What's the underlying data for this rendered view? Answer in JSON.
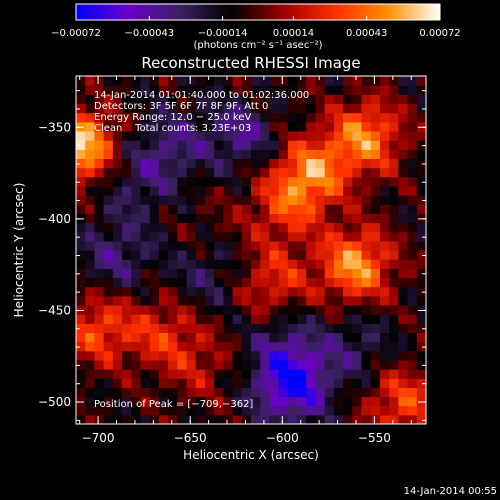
{
  "chart_data": {
    "type": "heatmap",
    "title": "Reconstructed RHESSI Image",
    "xlabel": "Heliocentric X (arcsec)",
    "ylabel": "Heliocentric Y (arcsec)",
    "xlim": [
      -712,
      -522
    ],
    "ylim": [
      -512,
      -322
    ],
    "x_ticks": [
      -700,
      -650,
      -600,
      -550
    ],
    "x_tick_labels": [
      "−700",
      "−650",
      "−600",
      "−550"
    ],
    "y_ticks": [
      -350,
      -400,
      -450,
      -500
    ],
    "y_tick_labels": [
      "−350",
      "−400",
      "−450",
      "−500"
    ],
    "colorbar": {
      "range": [
        -0.00072,
        0.00072
      ],
      "ticks": [
        -0.00072,
        -0.00043,
        -0.00014,
        0.00014,
        0.00043,
        0.00072
      ],
      "tick_labels": [
        "−0.00072",
        "−0.00043",
        "−0.00014",
        "0.00014",
        "0.00043",
        "0.00072"
      ],
      "units_label": "(photons cm⁻² s⁻¹ asec⁻²)",
      "colors": [
        "#0000ff",
        "#6a00c8",
        "#3a2060",
        "#000000",
        "#a00000",
        "#ff3000",
        "#ff9000",
        "#ffffff"
      ]
    },
    "annotations": {
      "time_range": "14-Jan-2014 01:01:40.000 to 01:02:36.000",
      "detectors": "Detectors: 3F 5F 6F 7F 8F 9F, Att 0",
      "energy_range": "Energy Range: 12.0 − 25.0 keV",
      "clean_counts": "Clean    Total counts: 3.23E+03",
      "peak": "Position of Peak = [−709,−362]"
    },
    "bright_regions": [
      {
        "x": -710,
        "y": -360,
        "value": 0.00072
      },
      {
        "x": -555,
        "y": -355,
        "value": 0.00055
      },
      {
        "x": -585,
        "y": -375,
        "value": 0.00055
      },
      {
        "x": -600,
        "y": -395,
        "value": 0.0003
      },
      {
        "x": -560,
        "y": -425,
        "value": 0.0006
      },
      {
        "x": -605,
        "y": -435,
        "value": 0.00035
      },
      {
        "x": -700,
        "y": -460,
        "value": 0.0004
      },
      {
        "x": -665,
        "y": -462,
        "value": 0.0003
      },
      {
        "x": -645,
        "y": -480,
        "value": 0.0002
      },
      {
        "x": -535,
        "y": -500,
        "value": 0.0004
      },
      {
        "x": -615,
        "y": -340,
        "value": 0.00015
      },
      {
        "x": -640,
        "y": -405,
        "value": 8e-05
      }
    ],
    "dark_regions": [
      {
        "x": -690,
        "y": -420,
        "value": -0.00025
      },
      {
        "x": -660,
        "y": -360,
        "value": -0.00025
      },
      {
        "x": -640,
        "y": -430,
        "value": -0.0002
      },
      {
        "x": -595,
        "y": -490,
        "value": -0.0006
      },
      {
        "x": -680,
        "y": -380,
        "value": -0.0002
      },
      {
        "x": -620,
        "y": -350,
        "value": -0.0004
      },
      {
        "x": -560,
        "y": -470,
        "value": -0.0002
      },
      {
        "x": -600,
        "y": -465,
        "value": -0.0002
      }
    ]
  },
  "footer": {
    "timestamp": "14-Jan-2014 00:55"
  }
}
